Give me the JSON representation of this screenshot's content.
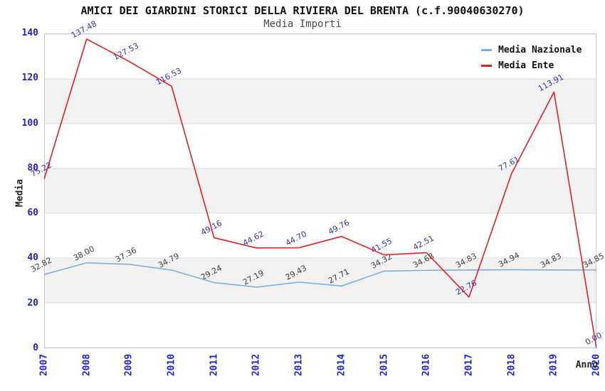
{
  "header": {
    "title": "AMICI DEI GIARDINI STORICI DELLA RIVIERA DEL BRENTA (c.f.90040630270)",
    "subtitle": "Media Importi"
  },
  "colors": {
    "tick_label": "#2222cc",
    "band_fill": "#f1f1f1",
    "gridline": "#dcdcdc",
    "plot_border": "#c9c9c9"
  },
  "chart_data": {
    "type": "line",
    "title": "AMICI DEI GIARDINI STORICI DELLA RIVIERA DEL BRENTA (c.f.90040630270)",
    "subtitle": "Media Importi",
    "xlabel": "Anno",
    "ylabel": "Media",
    "x": [
      "2007",
      "2008",
      "2009",
      "2010",
      "2011",
      "2012",
      "2013",
      "2014",
      "2015",
      "2016",
      "2017",
      "2018",
      "2019",
      "2020"
    ],
    "series": [
      {
        "name": "Media Nazionale",
        "color": "#79afe1",
        "label_color": "#3d3d3d",
        "values": [
          32.82,
          38.0,
          37.36,
          34.79,
          29.24,
          27.19,
          29.43,
          27.71,
          34.32,
          34.68,
          34.83,
          34.94,
          34.83,
          34.85
        ]
      },
      {
        "name": "Media Ente",
        "color": "#e02222",
        "label_color": "#2b35aa",
        "values": [
          75.22,
          137.48,
          127.53,
          116.53,
          49.16,
          44.62,
          44.7,
          49.76,
          41.55,
          42.51,
          22.76,
          77.61,
          113.91,
          0.0
        ]
      }
    ],
    "ylim": [
      0,
      140
    ],
    "ytick_step": 20,
    "yticks": [
      0,
      20,
      40,
      60,
      80,
      100,
      120,
      140
    ],
    "shaded_bands": [
      [
        20,
        40
      ],
      [
        60,
        80
      ],
      [
        100,
        120
      ]
    ],
    "grid": true,
    "legend_position": "top-right",
    "value_label_decimals": 2
  }
}
